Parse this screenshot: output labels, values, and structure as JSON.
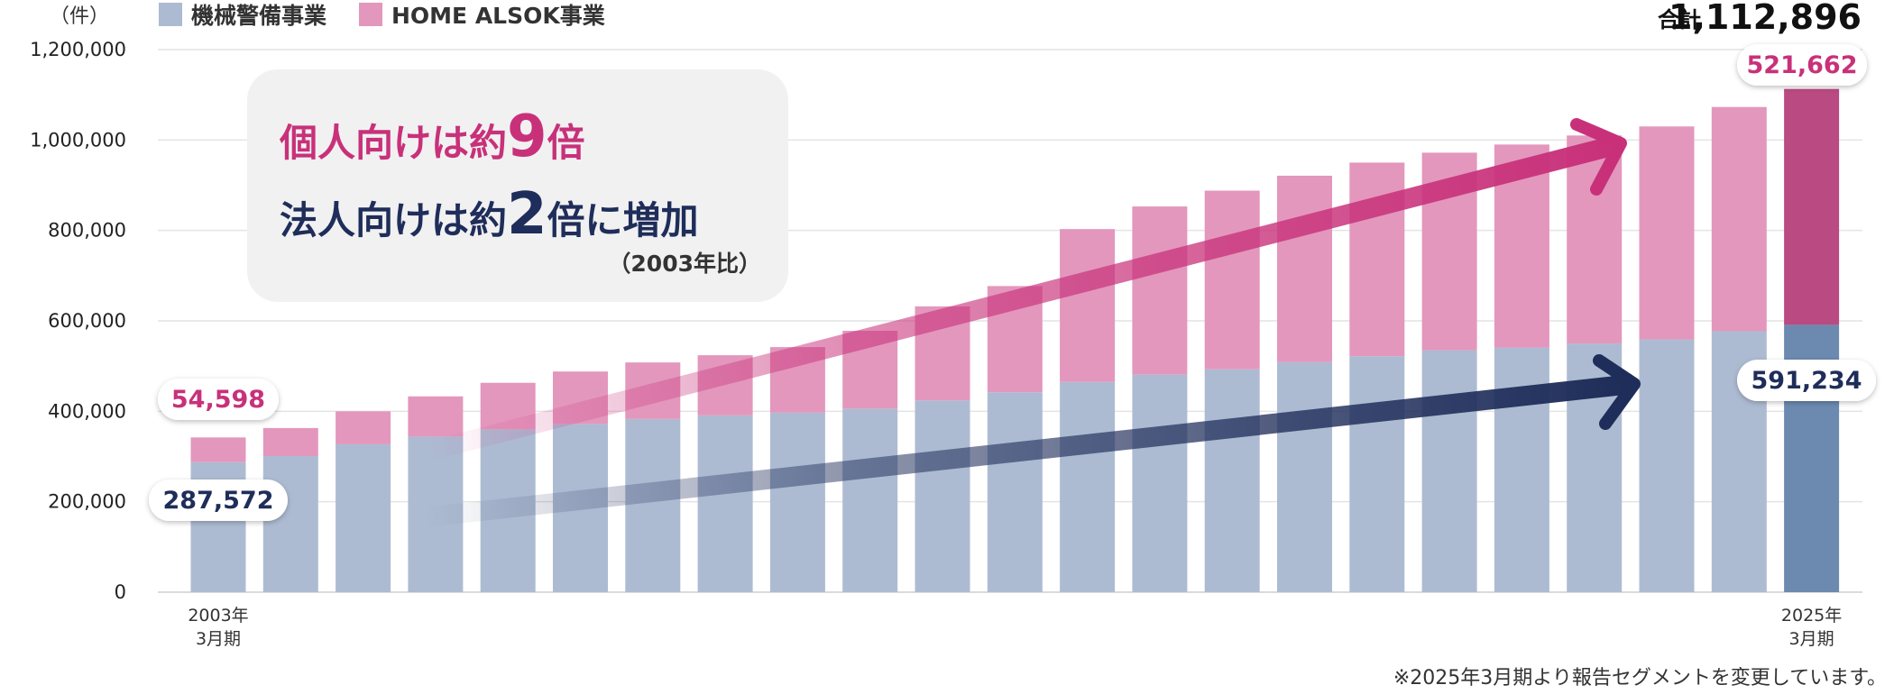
{
  "chart_data": {
    "type": "bar",
    "stacked": true,
    "unit_label": "（件）",
    "categories": [
      "2003年\n3月期",
      "",
      "",
      "",
      "",
      "",
      "",
      "",
      "",
      "",
      "",
      "",
      "",
      "",
      "",
      "",
      "",
      "",
      "",
      "",
      "",
      "",
      "2025年\n3月期"
    ],
    "series": [
      {
        "name": "機械警備事業",
        "color": "#adbbd2",
        "last_color": "#6c8ab0",
        "values": [
          287572,
          301000,
          327000,
          344000,
          360000,
          372000,
          383000,
          391000,
          397000,
          406000,
          424000,
          442000,
          465000,
          481000,
          493000,
          509000,
          522000,
          535000,
          541000,
          550000,
          559000,
          577000,
          591234
        ]
      },
      {
        "name": "HOME ALSOK事業",
        "color": "#e397bd",
        "last_color": "#b94a82",
        "values": [
          54598,
          62000,
          73000,
          89000,
          103000,
          116000,
          125000,
          133000,
          145000,
          172000,
          208000,
          235000,
          338000,
          372000,
          395000,
          412000,
          428000,
          437000,
          449000,
          460000,
          471000,
          496000,
          521662
        ]
      }
    ],
    "ylim": [
      0,
      1200000
    ],
    "yticks": [
      0,
      200000,
      400000,
      600000,
      800000,
      1000000,
      1200000
    ],
    "ytick_labels": [
      "0",
      "200,000",
      "400,000",
      "600,000",
      "800,000",
      "1,000,000",
      "1,200,000"
    ],
    "legend_position": "top-left",
    "grid": true,
    "callouts": {
      "first_home": "54,598",
      "first_machine": "287,572",
      "last_home": "521,662",
      "last_machine": "591,234"
    },
    "total": {
      "label": "合計",
      "value": "1,112,896"
    },
    "annotation": {
      "line1_pre": "個人向けは約",
      "line1_big": "9",
      "line1_post": "倍",
      "line2_pre": "法人向けは約",
      "line2_big": "2",
      "line2_post": "倍に増加",
      "sub": "（2003年比）"
    },
    "note": "※2025年3月期より報告セグメントを変更しています。"
  }
}
